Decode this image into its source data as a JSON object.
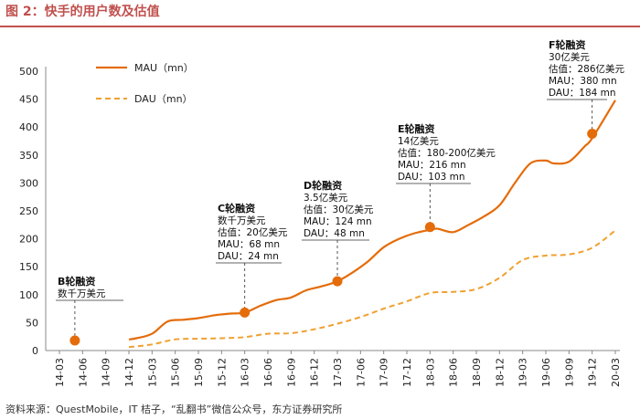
{
  "header": {
    "title": "图 2：快手的用户数及估值"
  },
  "source": "资料来源：QuestMobile，IT 桔子，“乱翻书”微信公众号，东方证券研究所",
  "colors": {
    "mau": "#e46c0a",
    "dau": "#f0a030",
    "accent": "#c0504d"
  },
  "chart_data": {
    "type": "line",
    "ylim": [
      0,
      500
    ],
    "yticks": [
      0,
      50,
      100,
      150,
      200,
      250,
      300,
      350,
      400,
      450,
      500
    ],
    "categories": [
      "14-03",
      "14-06",
      "14-09",
      "14-12",
      "15-03",
      "15-06",
      "15-09",
      "15-12",
      "16-03",
      "16-06",
      "16-09",
      "16-12",
      "17-03",
      "17-06",
      "17-09",
      "17-12",
      "18-03",
      "18-06",
      "18-09",
      "18-12",
      "19-03",
      "19-06",
      "19-09",
      "19-12",
      "20-03"
    ],
    "series": [
      {
        "name": "MAU（mn）",
        "style": "solid",
        "x": [
          "14-12",
          "15-01",
          "15-03",
          "15-05",
          "15-07",
          "15-09",
          "15-11",
          "16-01",
          "16-03",
          "16-05",
          "16-07",
          "16-09",
          "16-11",
          "17-01",
          "17-03",
          "17-05",
          "17-07",
          "17-09",
          "17-11",
          "18-01",
          "18-03",
          "18-04",
          "18-06",
          "18-08",
          "18-10",
          "18-12",
          "19-02",
          "19-04",
          "19-06",
          "19-07",
          "19-09",
          "19-11",
          "19-12",
          "20-03"
        ],
        "values": [
          20,
          22,
          30,
          52,
          55,
          58,
          63,
          66,
          68,
          80,
          90,
          95,
          108,
          115,
          124,
          140,
          160,
          185,
          200,
          210,
          216,
          218,
          212,
          225,
          240,
          260,
          300,
          335,
          340,
          335,
          338,
          365,
          380,
          448
        ]
      },
      {
        "name": "DAU（mn）",
        "style": "dashed",
        "x": [
          "14-12",
          "15-03",
          "15-06",
          "15-09",
          "15-12",
          "16-03",
          "16-06",
          "16-09",
          "16-12",
          "17-03",
          "17-06",
          "17-09",
          "17-12",
          "18-03",
          "18-06",
          "18-09",
          "18-12",
          "19-03",
          "19-06",
          "19-09",
          "19-12",
          "20-03"
        ],
        "values": [
          6,
          11,
          20,
          21,
          22,
          24,
          30,
          31,
          38,
          48,
          60,
          75,
          88,
          103,
          105,
          110,
          130,
          162,
          170,
          172,
          184,
          215
        ]
      }
    ],
    "points": [
      {
        "label": "B轮融资",
        "x": "14-05",
        "y": 18
      },
      {
        "label": "C轮融资",
        "x": "16-03",
        "y": 68
      },
      {
        "label": "D轮融资",
        "x": "17-03",
        "y": 124
      },
      {
        "label": "E轮融资",
        "x": "18-03",
        "y": 221
      },
      {
        "label": "F轮融资",
        "x": "19-12",
        "y": 388
      }
    ],
    "annotations": [
      {
        "lines": [
          "B轮融资",
          "数千万美元"
        ]
      },
      {
        "lines": [
          "C轮融资",
          "数千万美元",
          "估值：20亿美元",
          "MAU：68 mn",
          "DAU：24 mn"
        ]
      },
      {
        "lines": [
          "D轮融资",
          "3.5亿美元",
          "估值：30亿美元",
          "MAU：124 mn",
          "DAU：48 mn"
        ]
      },
      {
        "lines": [
          "E轮融资",
          "14亿美元",
          "估值：180-200亿美元",
          "MAU：216 mn",
          "DAU：103 mn"
        ]
      },
      {
        "lines": [
          "F轮融资",
          "30亿美元",
          "估值：286亿美元",
          "MAU：380 mn",
          "DAU：184 mn"
        ]
      }
    ]
  }
}
